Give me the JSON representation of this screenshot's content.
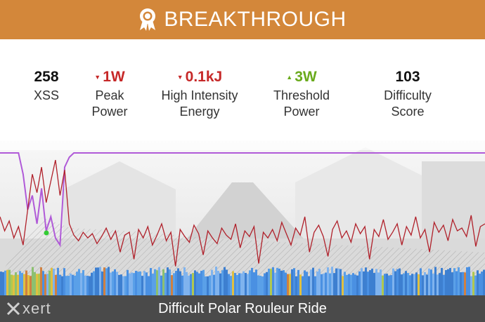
{
  "banner": {
    "title": "BREAKTHROUGH",
    "icon": "award-ribbon-icon",
    "color": "#d3873a"
  },
  "stats": [
    {
      "value": "258",
      "label": "XSS",
      "trend": "none"
    },
    {
      "value": "1W",
      "label": "Peak\nPower",
      "trend": "down"
    },
    {
      "value": "0.1kJ",
      "label": "High Intensity\nEnergy",
      "trend": "down"
    },
    {
      "value": "3W",
      "label": "Threshold\nPower",
      "trend": "up"
    },
    {
      "value": "103",
      "label": "Difficulty Score",
      "trend": "none"
    }
  ],
  "colors": {
    "down": "#c62828",
    "up": "#6aaa1c",
    "power_line": "#b0202a",
    "mpa_line": "#b05ad8",
    "footer": "#4a4a4a"
  },
  "chart_data": {
    "type": "line",
    "series": [
      {
        "values": [
          0.55,
          0.45,
          0.52,
          0.4,
          0.48,
          0.35,
          0.6,
          0.85,
          0.72,
          0.9,
          0.65,
          0.8,
          0.95,
          0.7,
          0.88,
          0.5,
          0.42,
          0.38,
          0.44,
          0.4,
          0.43,
          0.36,
          0.41,
          0.47,
          0.39,
          0.45,
          0.3,
          0.42,
          0.44,
          0.25,
          0.46,
          0.4,
          0.48,
          0.35,
          0.42,
          0.5,
          0.38,
          0.44,
          0.2,
          0.46,
          0.41,
          0.37,
          0.49,
          0.43,
          0.28,
          0.45,
          0.4,
          0.36,
          0.47,
          0.42,
          0.39,
          0.5,
          0.33,
          0.45,
          0.41,
          0.48,
          0.22,
          0.44,
          0.4,
          0.46,
          0.38,
          0.51,
          0.43,
          0.35,
          0.47,
          0.42,
          0.55,
          0.3,
          0.44,
          0.49,
          0.41,
          0.27,
          0.46,
          0.52,
          0.4,
          0.45,
          0.37,
          0.5,
          0.43,
          0.48,
          0.25,
          0.46,
          0.41,
          0.53,
          0.39,
          0.44,
          0.5,
          0.35,
          0.48,
          0.42,
          0.55,
          0.4,
          0.46,
          0.3,
          0.51,
          0.44,
          0.49,
          0.38,
          0.53,
          0.45,
          0.47,
          0.41,
          0.56,
          0.34,
          0.48,
          0.5
        ]
      },
      {
        "values": [
          1,
          1,
          1,
          1,
          1,
          0.85,
          0.6,
          0.7,
          0.5,
          0.75,
          0.45,
          0.55,
          0.4,
          0.35,
          0.9,
          0.97,
          1,
          1,
          1,
          1,
          1,
          1,
          1,
          1,
          1,
          1,
          1,
          1,
          1,
          1,
          1,
          1,
          1,
          1,
          1,
          1,
          1,
          1,
          1,
          1,
          1,
          1,
          1,
          1,
          1,
          1,
          1,
          1,
          1,
          1,
          1,
          1,
          1,
          1,
          1,
          1,
          1,
          1,
          1,
          1,
          1,
          1,
          1,
          1,
          1,
          1,
          1,
          1,
          1,
          1,
          1,
          1,
          1,
          1,
          1,
          1,
          1,
          1,
          1,
          1,
          1,
          1,
          1,
          1,
          1,
          1,
          1,
          1,
          1,
          1,
          1,
          1,
          1,
          1,
          1,
          1,
          1,
          1,
          1,
          1,
          1,
          1,
          1,
          1,
          1,
          1
        ]
      }
    ]
  },
  "footer": {
    "logo": "xert",
    "title": "Difficult Polar Rouleur Ride"
  }
}
